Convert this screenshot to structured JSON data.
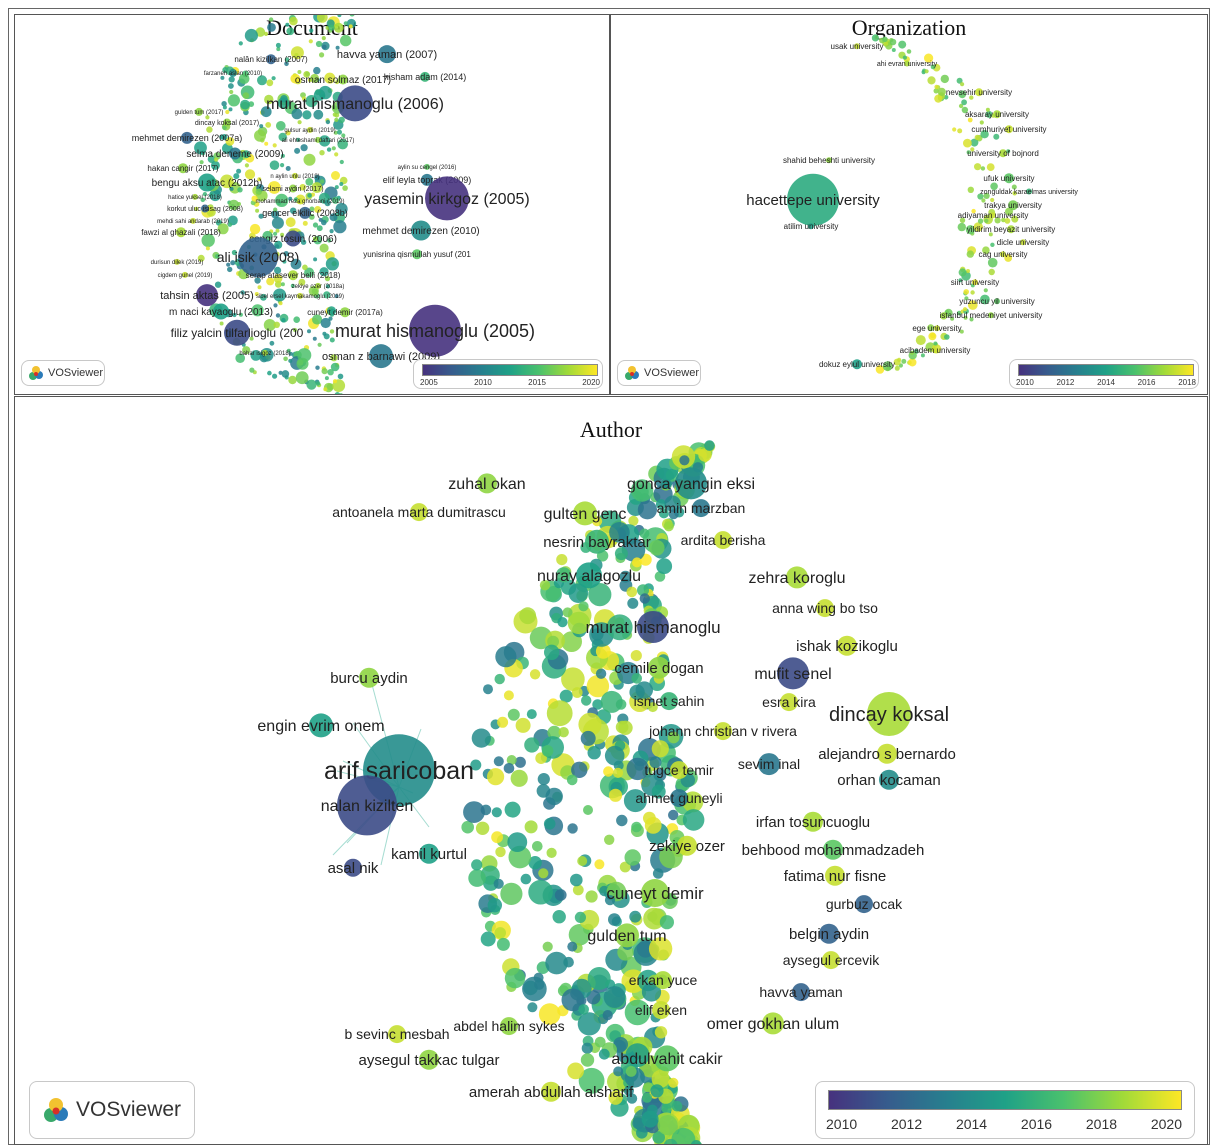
{
  "colors": {
    "scale": [
      "#46327e",
      "#365c8d",
      "#277f8e",
      "#1fa187",
      "#4ac16d",
      "#a0da39",
      "#fde725"
    ],
    "edge": "#8fd3c6"
  },
  "logo_text": "VOSviewer",
  "document": {
    "title": "Document",
    "legend_ticks": [
      "2005",
      "2010",
      "2015",
      "2020"
    ],
    "labels": [
      {
        "text": "havva yaman (2007)",
        "v": 0.3
      },
      {
        "text": "nalân kizilkan (2007)",
        "v": 0.2
      },
      {
        "text": "farzaneh aslan (2010)",
        "v": 0.4
      },
      {
        "text": "osman solmaz (2017)",
        "v": 0.8
      },
      {
        "text": "hisham adam (2014)",
        "v": 0.6
      },
      {
        "text": "murat hismanoglu (2006)",
        "v": 0.1
      },
      {
        "text": "gulden tum (2017)",
        "v": 0.8
      },
      {
        "text": "dincay koksal (2017)",
        "v": 0.8
      },
      {
        "text": "gulsur aydin (2019)",
        "v": 0.9
      },
      {
        "text": "mehmet demirezen (2007a)",
        "v": 0.2
      },
      {
        "text": "ali ehteshami daftari (2017)",
        "v": 0.8
      },
      {
        "text": "selma deneme (2009)",
        "v": 0.3
      },
      {
        "text": "hakan cangir (2017)",
        "v": 0.8
      },
      {
        "text": "n aylin unlu (2019)",
        "v": 0.9
      },
      {
        "text": "aylin su cengel (2016)",
        "v": 0.7
      },
      {
        "text": "elif leyla toprak (2009)",
        "v": 0.3
      },
      {
        "text": "bengu aksu atac (2012b)",
        "v": 0.5
      },
      {
        "text": "selami aydin (2017)",
        "v": 0.8
      },
      {
        "text": "yasemin kirkgoz (2005)",
        "v": 0.0
      },
      {
        "text": "hatice yuksel (2018)",
        "v": 0.85
      },
      {
        "text": "mohammad reza ghorbani (2019)",
        "v": 0.9
      },
      {
        "text": "korkut uluc isisag (2008)",
        "v": 0.2
      },
      {
        "text": "gencer elkilic (2008b)",
        "v": 0.2
      },
      {
        "text": "mehdi sahi andarab (2019)",
        "v": 0.9
      },
      {
        "text": "fawzi al ghazali (2018)",
        "v": 0.85
      },
      {
        "text": "mehmet demirezen (2010)",
        "v": 0.4
      },
      {
        "text": "cengiz tosun (2006)",
        "v": 0.1
      },
      {
        "text": "yunisrina qismullah yusuf (201",
        "v": 0.7
      },
      {
        "text": "durisun dilek (2019)",
        "v": 0.9
      },
      {
        "text": "ali isik (2008)",
        "v": 0.2
      },
      {
        "text": "cigdem gunel (2019)",
        "v": 0.9
      },
      {
        "text": "serap atasever belli (2018)",
        "v": 0.85
      },
      {
        "text": "zekiye ozer (2018a)",
        "v": 0.85
      },
      {
        "text": "tahsin aktas (2005)",
        "v": 0.0
      },
      {
        "text": "sibel ersel kaymakamoglu (2019)",
        "v": 0.9
      },
      {
        "text": "cuneyt demir (2017a)",
        "v": 0.8
      },
      {
        "text": "m naci kayaoglu (2013)",
        "v": 0.5
      },
      {
        "text": "filiz yalcin tilfarlioglu (200",
        "v": 0.1
      },
      {
        "text": "murat hismanoglu (2005)",
        "v": 0.0
      },
      {
        "text": "bahar isigoz (2018)",
        "v": 0.85
      },
      {
        "text": "osman z barnawi (2009)",
        "v": 0.3
      }
    ]
  },
  "organization": {
    "title": "Organization",
    "legend_ticks": [
      "2010",
      "2012",
      "2014",
      "2016",
      "2018"
    ],
    "labels": [
      {
        "text": "usak university",
        "v": 0.9
      },
      {
        "text": "ahi evran university",
        "v": 0.85
      },
      {
        "text": "nevsehir university",
        "v": 0.9
      },
      {
        "text": "aksaray university",
        "v": 0.85
      },
      {
        "text": "cumhuriyet university",
        "v": 0.9
      },
      {
        "text": "shahid beheshti university",
        "v": 0.8
      },
      {
        "text": "university of bojnord",
        "v": 0.85
      },
      {
        "text": "ufuk university",
        "v": 0.7
      },
      {
        "text": "zonguldak karaelmas university",
        "v": 0.6
      },
      {
        "text": "hacettepe university",
        "v": 0.55
      },
      {
        "text": "trakya university",
        "v": 0.75
      },
      {
        "text": "adiyaman university",
        "v": 0.9
      },
      {
        "text": "atilim university",
        "v": 0.5
      },
      {
        "text": "yildirim beyazit university",
        "v": 0.85
      },
      {
        "text": "dicle university",
        "v": 0.9
      },
      {
        "text": "cag university",
        "v": 0.9
      },
      {
        "text": "siirt university",
        "v": 0.95
      },
      {
        "text": "yuzuncu yil university",
        "v": 0.7
      },
      {
        "text": "istanbul medeniyet university",
        "v": 0.8
      },
      {
        "text": "ege university",
        "v": 0.9
      },
      {
        "text": "acibadem university",
        "v": 0.9
      },
      {
        "text": "dokuz eylul university",
        "v": 0.5
      }
    ]
  },
  "author": {
    "title": "Author",
    "legend_ticks": [
      "2010",
      "2012",
      "2014",
      "2016",
      "2018",
      "2020"
    ],
    "labels": [
      {
        "text": "zuhal okan",
        "v": 0.8
      },
      {
        "text": "gonca yangin eksi",
        "v": 0.4
      },
      {
        "text": "antoanela marta dumitrascu",
        "v": 0.9
      },
      {
        "text": "gulten genc",
        "v": 0.85
      },
      {
        "text": "amin marzban",
        "v": 0.3
      },
      {
        "text": "nesrin bayraktar",
        "v": 0.6
      },
      {
        "text": "ardita berisha",
        "v": 0.9
      },
      {
        "text": "nuray alagozlu",
        "v": 0.5
      },
      {
        "text": "zehra koroglu",
        "v": 0.85
      },
      {
        "text": "anna wing bo tso",
        "v": 0.9
      },
      {
        "text": "murat hismanoglu",
        "v": 0.1
      },
      {
        "text": "ishak kozikoglu",
        "v": 0.9
      },
      {
        "text": "cemile dogan",
        "v": 0.8
      },
      {
        "text": "mufit senel",
        "v": 0.1
      },
      {
        "text": "ismet sahin",
        "v": 0.6
      },
      {
        "text": "esra kira",
        "v": 0.9
      },
      {
        "text": "dincay koksal",
        "v": 0.85
      },
      {
        "text": "johann christian v rivera",
        "v": 0.9
      },
      {
        "text": "alejandro s bernardo",
        "v": 0.9
      },
      {
        "text": "burcu aydin",
        "v": 0.8
      },
      {
        "text": "engin evrim onem",
        "v": 0.5
      },
      {
        "text": "arif saricoban",
        "v": 0.4
      },
      {
        "text": "tugce temir",
        "v": 0.9
      },
      {
        "text": "sevim inal",
        "v": 0.3
      },
      {
        "text": "orhan kocaman",
        "v": 0.4
      },
      {
        "text": "nalan kizilten",
        "v": 0.1
      },
      {
        "text": "ahmet guneyli",
        "v": 0.3
      },
      {
        "text": "irfan tosuncuoglu",
        "v": 0.85
      },
      {
        "text": "zekiye ozer",
        "v": 0.9
      },
      {
        "text": "behbood mohammadzadeh",
        "v": 0.7
      },
      {
        "text": "kamil kurtul",
        "v": 0.5
      },
      {
        "text": "asal nik",
        "v": 0.1
      },
      {
        "text": "fatima nur fisne",
        "v": 0.9
      },
      {
        "text": "cuneyt demir",
        "v": 0.8
      },
      {
        "text": "gurbuz ocak",
        "v": 0.2
      },
      {
        "text": "gulden tum",
        "v": 0.8
      },
      {
        "text": "belgin aydin",
        "v": 0.2
      },
      {
        "text": "aysegul ercevik",
        "v": 0.9
      },
      {
        "text": "erkan yuce",
        "v": 0.85
      },
      {
        "text": "havva yaman",
        "v": 0.2
      },
      {
        "text": "elif eken",
        "v": 0.9
      },
      {
        "text": "omer gokhan ulum",
        "v": 0.85
      },
      {
        "text": "b sevinc mesbah",
        "v": 0.9
      },
      {
        "text": "abdel halim sykes",
        "v": 0.8
      },
      {
        "text": "aysegul takkac tulgar",
        "v": 0.8
      },
      {
        "text": "abdulvahit cakir",
        "v": 0.7
      },
      {
        "text": "amerah abdullah alsharif",
        "v": 0.9
      }
    ]
  }
}
